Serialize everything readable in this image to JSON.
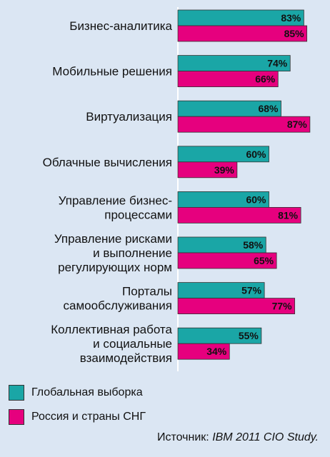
{
  "chart_data": {
    "type": "bar",
    "orientation": "horizontal",
    "categories": [
      [
        "Бизнес-аналитика"
      ],
      [
        "Мобильные решения"
      ],
      [
        "Виртуализация"
      ],
      [
        "Облачные вычисления"
      ],
      [
        "Управление бизнес-",
        "процессами"
      ],
      [
        "Управление рисками",
        "и выполнение",
        "регулирующих норм"
      ],
      [
        "Порталы",
        "самообслуживания"
      ],
      [
        "Коллективная работа",
        "и социальные",
        "взаимодействия"
      ]
    ],
    "series": [
      {
        "name": "Глобальная выборка",
        "color": "#1aa6a6",
        "values": [
          83,
          74,
          68,
          60,
          60,
          58,
          57,
          55
        ]
      },
      {
        "name": "Россия и страны СНГ",
        "color": "#e6007e",
        "values": [
          85,
          66,
          87,
          39,
          81,
          65,
          77,
          34
        ]
      }
    ],
    "value_suffix": "%",
    "xlim": [
      0,
      100
    ],
    "legend_position": "bottom-left"
  },
  "source": {
    "prefix": "Источник: ",
    "text": "IBM 2011 CIO Study."
  }
}
